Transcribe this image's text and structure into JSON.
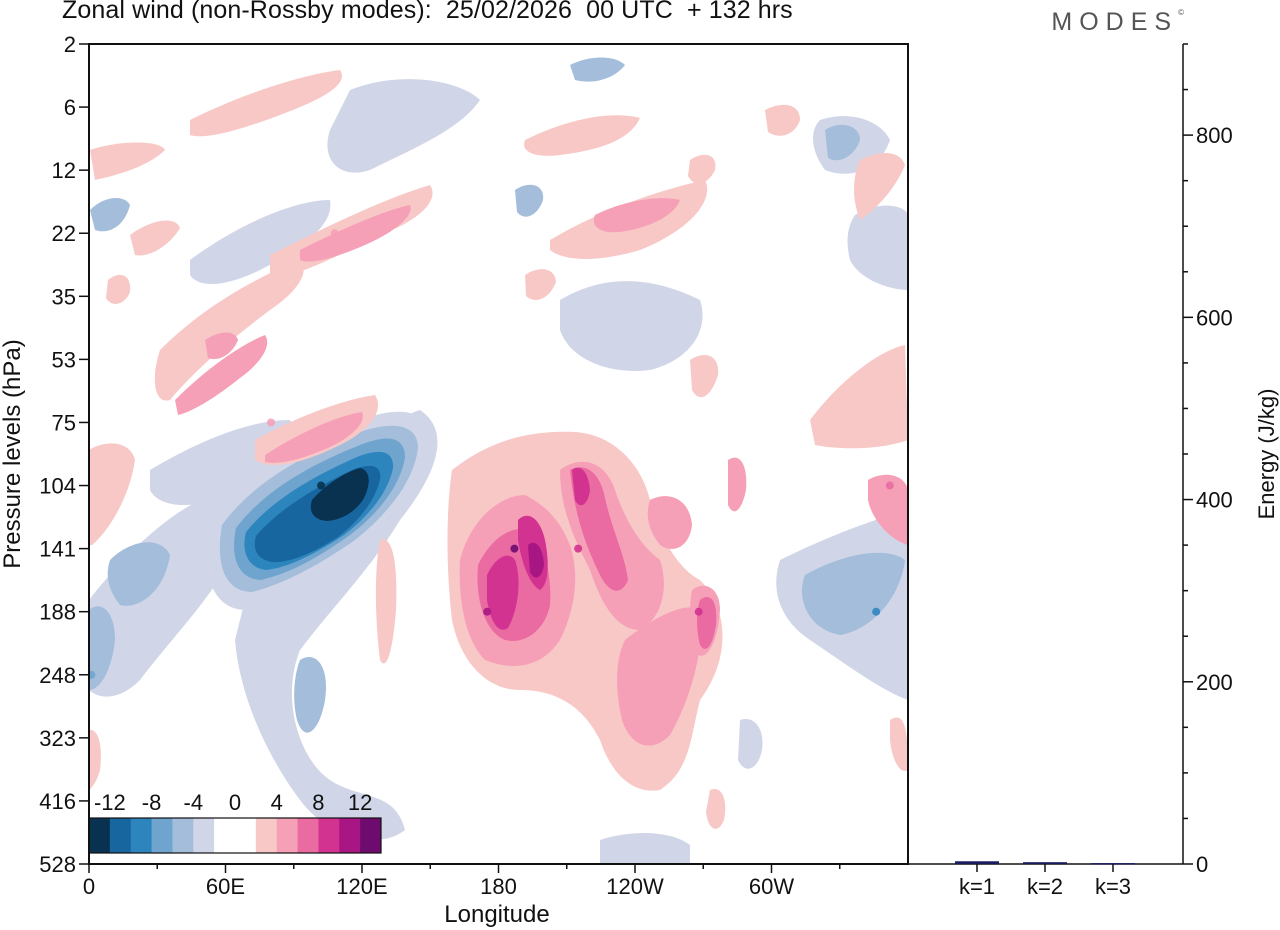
{
  "header": {
    "title": "Zonal wind (non-Rossby modes):  25/02/2026  00 UTC  + 132 hrs",
    "brand": "MODES",
    "brand_mark": "©"
  },
  "colors": {
    "scale": [
      "#08324f",
      "#1766a0",
      "#2d85be",
      "#6ea4cd",
      "#a3bdda",
      "#d0d6e8",
      "#ffffff",
      "#ffffff",
      "#f8c8c6",
      "#f6a0b8",
      "#ea6aa2",
      "#d23290",
      "#a81684",
      "#6e0b6f"
    ],
    "axis": "#111111",
    "bar": "#1a1a5e"
  },
  "chart_data": [
    {
      "type": "heatmap",
      "title": "Zonal wind (non-Rossby modes):  25/02/2026  00 UTC  + 132 hrs",
      "xlabel": "Longitude",
      "ylabel": "Pressure levels (hPa)",
      "xticks": [
        "0",
        "60E",
        "120E",
        "180",
        "120W",
        "60W"
      ],
      "xtick_values": [
        0,
        60,
        120,
        180,
        240,
        300
      ],
      "xlim": [
        0,
        360
      ],
      "yticks": [
        "2",
        "6",
        "12",
        "22",
        "35",
        "53",
        "75",
        "104",
        "141",
        "188",
        "248",
        "323",
        "416",
        "528"
      ],
      "colorbar": {
        "tick_labels": [
          "-12",
          "-8",
          "-4",
          "0",
          "4",
          "8",
          "12"
        ],
        "levels": [
          -14,
          -12,
          -10,
          -8,
          -6,
          -4,
          -2,
          0,
          2,
          4,
          6,
          8,
          10,
          12,
          14
        ]
      },
      "features": [
        {
          "lon": 102,
          "level": 104,
          "value": -14
        },
        {
          "lon": 78,
          "level": 141,
          "value": -11
        },
        {
          "lon": 1,
          "level": 248,
          "value": -7
        },
        {
          "lon": 346,
          "level": 188,
          "value": -9
        },
        {
          "lon": 187,
          "level": 141,
          "value": 12
        },
        {
          "lon": 175,
          "level": 188,
          "value": 10
        },
        {
          "lon": 215,
          "level": 141,
          "value": 8
        },
        {
          "lon": 268,
          "level": 188,
          "value": 8
        },
        {
          "lon": 240,
          "level": 248,
          "value": 5
        },
        {
          "lon": 108,
          "level": 22,
          "value": 5
        },
        {
          "lon": 80,
          "level": 75,
          "value": 5
        },
        {
          "lon": 352,
          "level": 104,
          "value": 6
        }
      ]
    },
    {
      "type": "bar",
      "categories": [
        "k=1",
        "k=2",
        "k=3"
      ],
      "values": [
        3,
        2,
        1
      ],
      "ylabel": "Energy (J/kg)",
      "ylim": [
        0,
        900
      ],
      "yticks": [
        0,
        200,
        400,
        600,
        800
      ]
    }
  ]
}
